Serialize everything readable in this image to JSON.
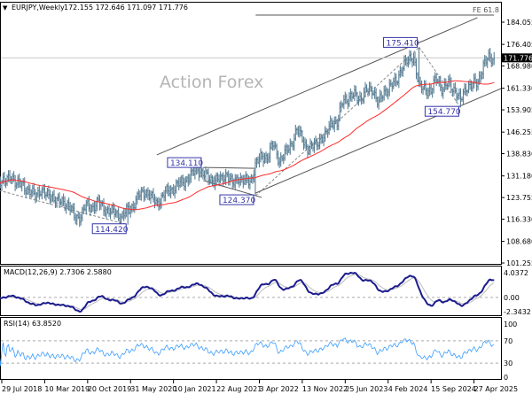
{
  "header": {
    "symbol": "EURJPY,Weekly",
    "ohlc": "172.155 172.646 171.097 171.776",
    "menu_icon": "triangle-down-icon"
  },
  "watermark": "Action Forex",
  "colors": {
    "bars": "#5b7f95",
    "sma": "#ff2a2a",
    "macd": "#1c1c8f",
    "signal": "#bdbdbd",
    "rsi": "#3a9cff",
    "annotation": "#3535a8",
    "channel": "#555555"
  },
  "chart_data": {
    "type": "ohlc",
    "title": "EURJPY,Weekly",
    "last_price": 171.776,
    "last_price_label": "171.776",
    "ylim": [
      101.255,
      184.055
    ],
    "price_ticks": [
      "184.055",
      "176.405",
      "168.980",
      "161.330",
      "153.905",
      "146.255",
      "138.830",
      "131.180",
      "123.755",
      "116.330",
      "108.680",
      "101.255"
    ],
    "date_ticks": [
      {
        "label": "29 Jul 2018",
        "date": "2018-07-29"
      },
      {
        "label": "10 Mar 2019",
        "date": "2019-03-10"
      },
      {
        "label": "20 Oct 2019",
        "date": "2019-10-20"
      },
      {
        "label": "31 May 2020",
        "date": "2020-05-31"
      },
      {
        "label": "10 Jan 2021",
        "date": "2021-01-10"
      },
      {
        "label": "22 Aug 2021",
        "date": "2021-08-22"
      },
      {
        "label": "3 Apr 2022",
        "date": "2022-04-03"
      },
      {
        "label": "13 Nov 2022",
        "date": "2022-11-13"
      },
      {
        "label": "25 Jun 2023",
        "date": "2023-06-25"
      },
      {
        "label": "4 Feb 2024",
        "date": "2024-02-04"
      },
      {
        "label": "15 Sep 2024",
        "date": "2024-09-15"
      },
      {
        "label": "27 Apr 2025",
        "date": "2025-04-27"
      }
    ],
    "months": [
      "2018-07",
      "2018-08",
      "2018-09",
      "2018-10",
      "2018-11",
      "2018-12",
      "2019-01",
      "2019-02",
      "2019-03",
      "2019-04",
      "2019-05",
      "2019-06",
      "2019-07",
      "2019-08",
      "2019-09",
      "2019-10",
      "2019-11",
      "2019-12",
      "2020-01",
      "2020-02",
      "2020-03",
      "2020-04",
      "2020-05",
      "2020-06",
      "2020-07",
      "2020-08",
      "2020-09",
      "2020-10",
      "2020-11",
      "2020-12",
      "2021-01",
      "2021-02",
      "2021-03",
      "2021-04",
      "2021-05",
      "2021-06",
      "2021-07",
      "2021-08",
      "2021-09",
      "2021-10",
      "2021-11",
      "2021-12",
      "2022-01",
      "2022-02",
      "2022-03",
      "2022-04",
      "2022-05",
      "2022-06",
      "2022-07",
      "2022-08",
      "2022-09",
      "2022-10",
      "2022-11",
      "2022-12",
      "2023-01",
      "2023-02",
      "2023-03",
      "2023-04",
      "2023-05",
      "2023-06",
      "2023-07",
      "2023-08",
      "2023-09",
      "2023-10",
      "2023-11",
      "2023-12",
      "2024-01",
      "2024-02",
      "2024-03",
      "2024-04",
      "2024-05",
      "2024-06",
      "2024-07",
      "2024-08",
      "2024-09",
      "2024-10",
      "2024-11",
      "2024-12",
      "2025-01",
      "2025-02",
      "2025-03",
      "2025-04",
      "2025-05",
      "2025-06",
      "2025-07",
      "2025-08"
    ],
    "monthly_close": [
      130.0,
      128.5,
      131.9,
      127.9,
      128.6,
      125.8,
      124.5,
      126.5,
      124.3,
      124.9,
      121.8,
      122.6,
      120.7,
      116.8,
      117.6,
      121.0,
      120.6,
      121.8,
      120.2,
      118.7,
      118.7,
      116.7,
      119.5,
      121.2,
      124.3,
      126.2,
      123.7,
      121.9,
      124.1,
      126.2,
      127.1,
      128.6,
      129.9,
      131.3,
      133.9,
      131.6,
      130.3,
      129.9,
      129.6,
      132.3,
      127.9,
      130.9,
      129.3,
      129.1,
      135.4,
      137.5,
      138.0,
      142.0,
      136.6,
      138.7,
      141.9,
      147.1,
      143.6,
      140.4,
      141.4,
      144.2,
      144.6,
      150.5,
      149.0,
      157.9,
      157.8,
      159.0,
      158.0,
      160.2,
      161.4,
      155.7,
      160.3,
      161.9,
      163.3,
      168.6,
      170.4,
      172.8,
      161.3,
      161.6,
      159.9,
      165.3,
      160.6,
      163.1,
      161.1,
      156.6,
      161.9,
      162.2,
      163.3,
      169.1,
      171.8,
      171.776
    ],
    "annotations": [
      {
        "label": "114.420",
        "date": "2020-05",
        "price": 114.42,
        "type": "low"
      },
      {
        "label": "134.110",
        "date": "2021-06",
        "price": 134.11,
        "type": "high"
      },
      {
        "label": "124.370",
        "date": "2022-03",
        "price": 124.37,
        "type": "low"
      },
      {
        "label": "175.410",
        "date": "2024-07",
        "price": 175.41,
        "type": "high"
      },
      {
        "label": "154.770",
        "date": "2025-02",
        "price": 154.77,
        "type": "low"
      }
    ],
    "trendlines": [
      {
        "name": "channel-upper",
        "from": [
          "2020-10",
          138.4
        ],
        "to": [
          "2025-05",
          185.6
        ],
        "style": "solid"
      },
      {
        "name": "channel-lower",
        "from": [
          "2022-03",
          125.3
        ],
        "to": [
          "2025-09",
          161.2
        ],
        "style": "solid"
      },
      {
        "name": "triangle-upper",
        "from": [
          "2021-06",
          134.11
        ],
        "to": [
          "2022-03",
          133.8
        ],
        "style": "solid"
      },
      {
        "name": "triangle-lower",
        "from": [
          "2021-06",
          129.6
        ],
        "to": [
          "2022-04",
          123.8
        ],
        "style": "solid"
      },
      {
        "name": "down-leg",
        "from": [
          "2018-07",
          126.2
        ],
        "to": [
          "2020-05",
          114.42
        ],
        "style": "dashed"
      },
      {
        "name": "up-leg",
        "from": [
          "2022-03",
          124.37
        ],
        "to": [
          "2024-07",
          175.41
        ],
        "style": "dashed"
      },
      {
        "name": "correction-leg",
        "from": [
          "2024-07",
          175.41
        ],
        "to": [
          "2025-02",
          154.77
        ],
        "style": "dashed"
      }
    ],
    "fe_level": {
      "label": "FE 61.8",
      "price": 186.5,
      "from": "2022-03"
    },
    "sma": {
      "period": 55
    },
    "macd": {
      "label": "MACD(12,26,9) 2.7306 2.5880",
      "ticks": [
        "4.0372",
        "0.00",
        "-2.3432"
      ],
      "range": [
        -2.3432,
        4.0372
      ]
    },
    "rsi": {
      "label": "RSI(14) 63.8520",
      "ticks": [
        "100",
        "70",
        "30",
        "0"
      ],
      "levels": [
        70,
        30
      ]
    }
  }
}
